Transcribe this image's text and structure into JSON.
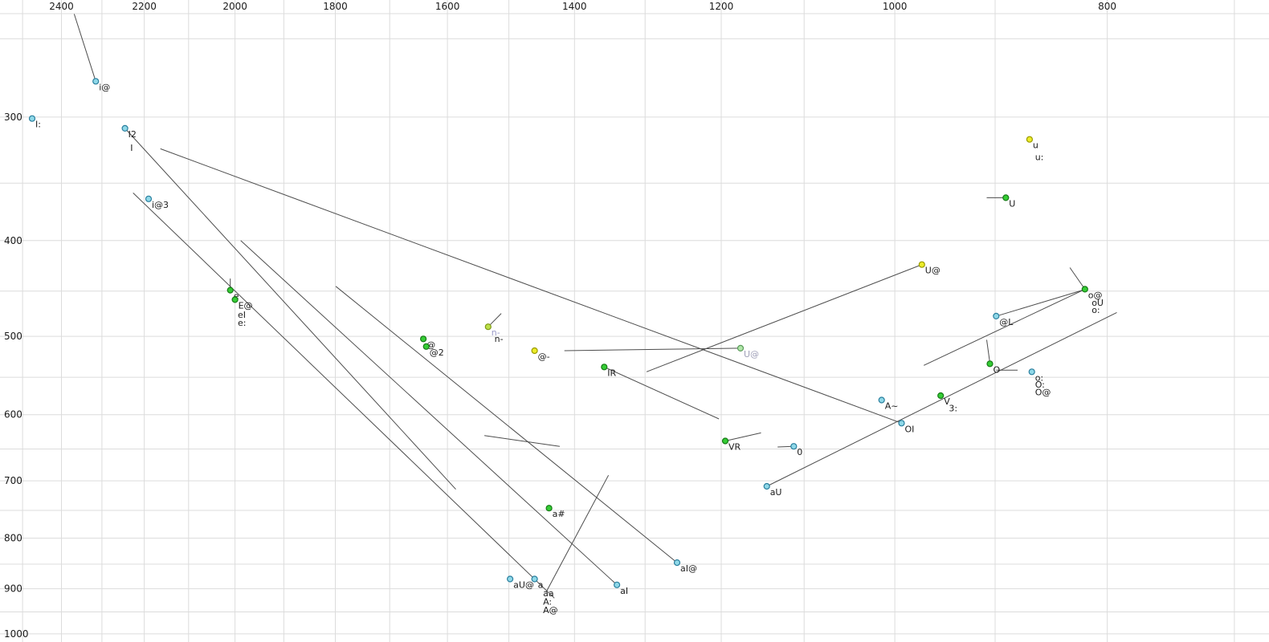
{
  "chart_data": {
    "type": "scatter",
    "description": "Vowel formant chart (F2 horizontal reversed log scale, F1 vertical log scale) with vowel tokens and diphthong trajectory lines",
    "x_axis": {
      "scale": "log",
      "reversed": true,
      "left_value": 2560,
      "right_value": 675,
      "tick_values": [
        2400,
        2200,
        2000,
        1800,
        1600,
        1400,
        1200,
        1000,
        800
      ],
      "tick_labels": [
        "2400",
        "2200",
        "2000",
        "1800",
        "1600",
        "1400",
        "1200",
        "1000",
        "800"
      ],
      "grid_values": [
        2500,
        2400,
        2300,
        2200,
        2100,
        2000,
        1900,
        1800,
        1700,
        1600,
        1500,
        1400,
        1300,
        1200,
        1100,
        1000,
        900,
        800,
        700
      ]
    },
    "y_axis": {
      "scale": "log",
      "top_value": 228.4,
      "bottom_value": 1019,
      "tick_values": [
        300,
        400,
        500,
        600,
        700,
        800,
        900,
        1000
      ],
      "tick_labels": [
        "300",
        "400",
        "500",
        "600",
        "700",
        "800",
        "900",
        "1000"
      ],
      "grid_values": [
        250,
        300,
        350,
        400,
        450,
        500,
        550,
        600,
        650,
        700,
        750,
        800,
        850,
        900,
        950,
        1000
      ]
    },
    "colors": {
      "label": "#1a1a1a",
      "grid": "#dcdcdc",
      "trajectory": "#4d4d4d",
      "cyan": {
        "fill": "#8fd8e8",
        "stroke": "#2a7f9e"
      },
      "green": {
        "fill": "#35cc35",
        "stroke": "#157a15"
      },
      "yellowgreen": {
        "fill": "#bce04a",
        "stroke": "#7e9a14"
      },
      "yellow": {
        "fill": "#ecec2a",
        "stroke": "#9a9a00"
      },
      "palegreen": {
        "fill": "#b0e6a8",
        "stroke": "#5a9a5a"
      }
    },
    "points": [
      {
        "label": "I:",
        "f2": 2475,
        "f1": 301,
        "color": "cyan"
      },
      {
        "label": "i@",
        "f2": 2315,
        "f1": 276,
        "color": "cyan"
      },
      {
        "label": "I2",
        "f2": 2245,
        "f1": 308,
        "color": "cyan"
      },
      {
        "label": "I",
        "f2": 2240,
        "f1": 318,
        "color": "cyan",
        "marker": false
      },
      {
        "label": "i@3",
        "f2": 2190,
        "f1": 363,
        "color": "cyan"
      },
      {
        "label": "e",
        "f2": 2010,
        "f1": 449,
        "color": "green"
      },
      {
        "label": "E@",
        "f2": 2000,
        "f1": 459,
        "color": "green"
      },
      {
        "label": "eI",
        "f2": 2001,
        "f1": 469,
        "color": "green",
        "marker": false
      },
      {
        "label": "e:",
        "f2": 2001,
        "f1": 478,
        "color": "green",
        "marker": false
      },
      {
        "label": "@",
        "f2": 1641,
        "f1": 503,
        "color": "green"
      },
      {
        "label": "@2",
        "f2": 1636,
        "f1": 512,
        "color": "green"
      },
      {
        "label": "n-",
        "f2": 1533,
        "f1": 489,
        "color": "yellowgreen",
        "label_color": "#9a9ac8"
      },
      {
        "label": "n-",
        "f2": 1528,
        "f1": 496,
        "color": "yellowgreen",
        "marker": false
      },
      {
        "label": "@-",
        "f2": 1460,
        "f1": 517,
        "color": "yellow"
      },
      {
        "label": "IR",
        "f2": 1357,
        "f1": 537,
        "color": "green"
      },
      {
        "label": "U@",
        "f2": 1176,
        "f1": 514,
        "color": "palegreen",
        "label_color": "#a0a0b8"
      },
      {
        "label": "U@",
        "f2": 972,
        "f1": 423,
        "color": "yellow"
      },
      {
        "label": "u",
        "f2": 868,
        "f1": 316,
        "color": "yellow"
      },
      {
        "label": "u:",
        "f2": 866,
        "f1": 325,
        "color": "yellow",
        "marker": false
      },
      {
        "label": "U",
        "f2": 890,
        "f1": 362,
        "color": "green"
      },
      {
        "label": "o@",
        "f2": 819,
        "f1": 448,
        "color": "green"
      },
      {
        "label": "oU",
        "f2": 816,
        "f1": 456,
        "color": "green",
        "marker": false
      },
      {
        "label": "o:",
        "f2": 816,
        "f1": 464,
        "color": "green",
        "marker": false
      },
      {
        "label": "@L",
        "f2": 899,
        "f1": 477,
        "color": "cyan"
      },
      {
        "label": "O",
        "f2": 905,
        "f1": 533,
        "color": "green"
      },
      {
        "label": "o:",
        "f2": 866,
        "f1": 543,
        "color": "cyan"
      },
      {
        "label": "O:",
        "f2": 866,
        "f1": 552,
        "color": "cyan",
        "marker": false
      },
      {
        "label": "O@",
        "f2": 866,
        "f1": 562,
        "color": "cyan",
        "marker": false
      },
      {
        "label": "V",
        "f2": 953,
        "f1": 574,
        "color": "green"
      },
      {
        "label": "3:",
        "f2": 948,
        "f1": 583,
        "color": "green",
        "marker": false
      },
      {
        "label": "OI",
        "f2": 993,
        "f1": 612,
        "color": "cyan"
      },
      {
        "label": "A~",
        "f2": 1014,
        "f1": 580,
        "color": "cyan"
      },
      {
        "label": "VR",
        "f2": 1195,
        "f1": 638,
        "color": "green"
      },
      {
        "label": "0",
        "f2": 1112,
        "f1": 646,
        "color": "cyan"
      },
      {
        "label": "aU",
        "f2": 1144,
        "f1": 709,
        "color": "cyan"
      },
      {
        "label": "aI@",
        "f2": 1257,
        "f1": 847,
        "color": "cyan"
      },
      {
        "label": "aI",
        "f2": 1339,
        "f1": 892,
        "color": "cyan"
      },
      {
        "label": "a#",
        "f2": 1438,
        "f1": 746,
        "color": "green"
      },
      {
        "label": "aU@",
        "f2": 1498,
        "f1": 880,
        "color": "cyan"
      },
      {
        "label": "a",
        "f2": 1460,
        "f1": 880,
        "color": "cyan"
      },
      {
        "label": "aa",
        "f2": 1452,
        "f1": 897,
        "color": "cyan",
        "marker": false
      },
      {
        "label": "A:",
        "f2": 1452,
        "f1": 915,
        "color": "cyan",
        "marker": false
      },
      {
        "label": "A@",
        "f2": 1452,
        "f1": 933,
        "color": "cyan",
        "marker": false
      }
    ],
    "lines": [
      {
        "from": [
          2368,
          236
        ],
        "to": [
          2315,
          276
        ]
      },
      {
        "from": [
          2245,
          308
        ],
        "to": [
          1586,
          714
        ]
      },
      {
        "from": [
          2226,
          358
        ],
        "to": [
          1430,
          920
        ]
      },
      {
        "from": [
          2163,
          323
        ],
        "to": [
          993,
          612
        ]
      },
      {
        "from": [
          1988,
          400
        ],
        "to": [
          1339,
          892
        ]
      },
      {
        "from": [
          1799,
          445
        ],
        "to": [
          1257,
          847
        ]
      },
      {
        "from": [
          2010,
          437
        ],
        "to": [
          2010,
          449
        ]
      },
      {
        "from": [
          1533,
          489
        ],
        "to": [
          1512,
          474
        ]
      },
      {
        "from": [
          1415,
          517
        ],
        "to": [
          1176,
          514
        ]
      },
      {
        "from": [
          1298,
          543
        ],
        "to": [
          972,
          423
        ]
      },
      {
        "from": [
          1357,
          537
        ],
        "to": [
          1203,
          606
        ]
      },
      {
        "from": [
          1195,
          638
        ],
        "to": [
          1151,
          626
        ]
      },
      {
        "from": [
          1131,
          647
        ],
        "to": [
          1113,
          646
        ]
      },
      {
        "from": [
          1144,
          709
        ],
        "to": [
          792,
          473
        ]
      },
      {
        "from": [
          819,
          448
        ],
        "to": [
          970,
          535
        ]
      },
      {
        "from": [
          832,
          426
        ],
        "to": [
          819,
          448
        ]
      },
      {
        "from": [
          908,
          362
        ],
        "to": [
          890,
          362
        ]
      },
      {
        "from": [
          908,
          504
        ],
        "to": [
          905,
          532
        ]
      },
      {
        "from": [
          899,
          541
        ],
        "to": [
          879,
          541
        ]
      },
      {
        "from": [
          896,
          476
        ],
        "to": [
          821,
          449
        ]
      },
      {
        "from": [
          1539,
          630
        ],
        "to": [
          1422,
          646
        ]
      },
      {
        "from": [
          1442,
          906
        ],
        "to": [
          1351,
          691
        ]
      }
    ]
  }
}
